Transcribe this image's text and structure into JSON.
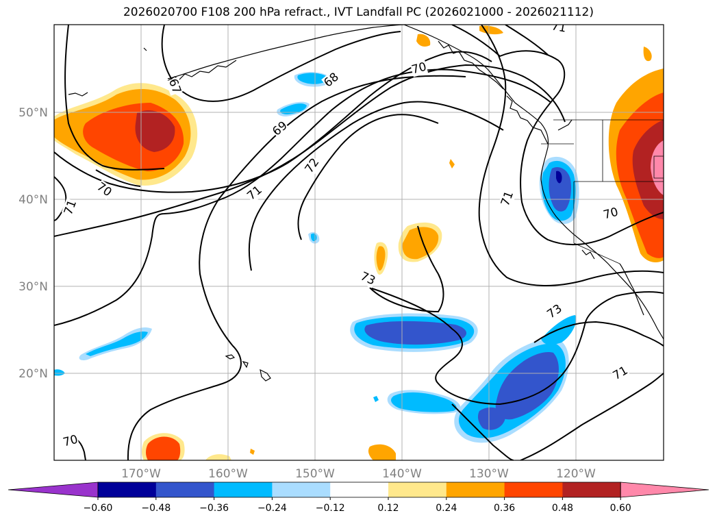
{
  "title": "2026020700 F108 200 hPa refract., IVT Landfall PC (2026021000 - 2026021112)",
  "map": {
    "lat_labels": [
      {
        "lat": 50,
        "text": "50°N"
      },
      {
        "lat": 40,
        "text": "40°N"
      },
      {
        "lat": 30,
        "text": "30°N"
      },
      {
        "lat": 20,
        "text": "20°N"
      }
    ],
    "lon_labels": [
      {
        "lon": -170,
        "text": "170°W"
      },
      {
        "lon": -160,
        "text": "160°W"
      },
      {
        "lon": -150,
        "text": "150°W"
      },
      {
        "lon": -140,
        "text": "140°W"
      },
      {
        "lon": -130,
        "text": "130°W"
      },
      {
        "lon": -120,
        "text": "120°W"
      }
    ],
    "contour_labels": [
      "67",
      "68",
      "69",
      "70",
      "70",
      "70",
      "70",
      "71",
      "71",
      "71",
      "71",
      "71",
      "72",
      "73",
      "73"
    ]
  },
  "colorbar": {
    "colors": [
      "#9933cc",
      "#000099",
      "#3355cc",
      "#00bbff",
      "#aaddff",
      "#ffffff",
      "#ffe88c",
      "#ffa500",
      "#ff4500",
      "#b22222",
      "#ff88aa"
    ],
    "tick_labels": [
      "−0.60",
      "−0.48",
      "−0.36",
      "−0.24",
      "−0.12",
      "0.12",
      "0.24",
      "0.36",
      "0.48",
      "0.60"
    ]
  }
}
